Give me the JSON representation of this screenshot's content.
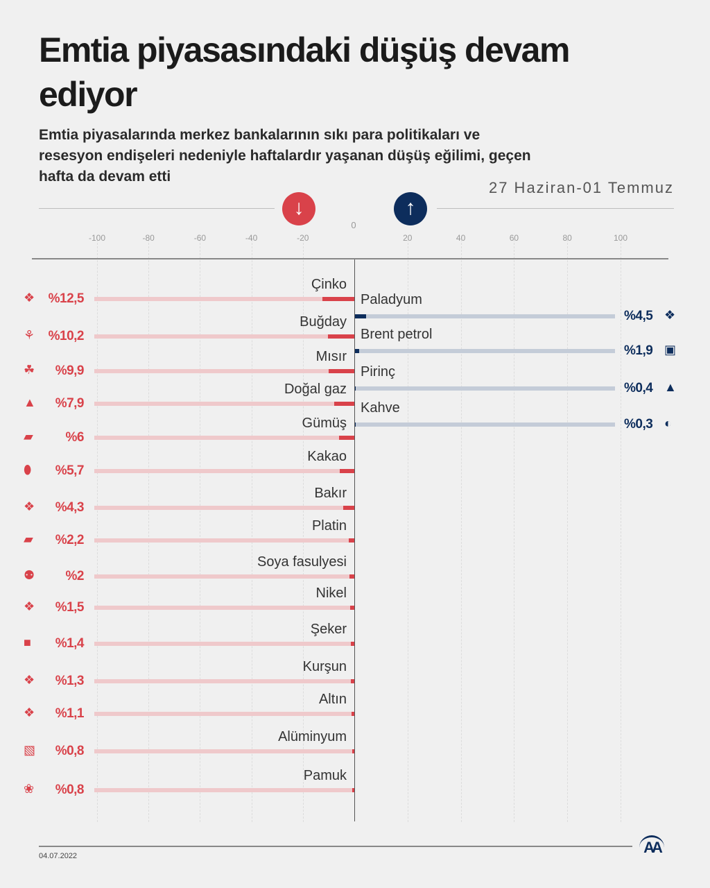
{
  "header": {
    "title": "Emtia piyasasındaki düşüş devam ediyor",
    "subtitle": "Emtia piyasalarında merkez bankalarının sıkı para politikaları ve resesyon endişeleri nedeniyle haftalardır yaşanan düşüş eğilimi, geçen hafta da devam etti",
    "period": "27 Haziran-01 Temmuz"
  },
  "legend": {
    "down_icon": "arrow-down-icon",
    "up_icon": "arrow-up-icon"
  },
  "colors": {
    "negative": "#d9424a",
    "negative_track": "#efc9cb",
    "positive": "#0d2d5c",
    "positive_track": "#c4ccd8"
  },
  "footer": {
    "date": "04.07.2022",
    "logo": "AA"
  },
  "chart_data": {
    "type": "bar",
    "orientation": "horizontal-diverging",
    "zero_label": "0",
    "xlim": [
      -100,
      100
    ],
    "ticks": [
      -100,
      -80,
      -60,
      -40,
      -20,
      20,
      40,
      60,
      80,
      100
    ],
    "tick_labels": [
      "-100",
      "-80",
      "-60",
      "-40",
      "-20",
      "20",
      "40",
      "60",
      "80",
      "100"
    ],
    "grid": true,
    "negative": [
      {
        "name": "Çinko",
        "value": -12.5,
        "label": "%12,5",
        "icon": "metal-icon"
      },
      {
        "name": "Buğday",
        "value": -10.2,
        "label": "%10,2",
        "icon": "wheat-icon"
      },
      {
        "name": "Mısır",
        "value": -9.9,
        "label": "%9,9",
        "icon": "corn-icon"
      },
      {
        "name": "Doğal gaz",
        "value": -7.9,
        "label": "%7,9",
        "icon": "flame-icon"
      },
      {
        "name": "Gümüş",
        "value": -6,
        "label": "%6",
        "icon": "ingot-icon"
      },
      {
        "name": "Kakao",
        "value": -5.7,
        "label": "%5,7",
        "icon": "cocoa-icon"
      },
      {
        "name": "Bakır",
        "value": -4.3,
        "label": "%4,3",
        "icon": "metal-icon"
      },
      {
        "name": "Platin",
        "value": -2.2,
        "label": "%2,2",
        "icon": "ingot-icon"
      },
      {
        "name": "Soya fasulyesi",
        "value": -2,
        "label": "%2",
        "icon": "soybean-icon"
      },
      {
        "name": "Nikel",
        "value": -1.5,
        "label": "%1,5",
        "icon": "metal-icon"
      },
      {
        "name": "Şeker",
        "value": -1.4,
        "label": "%1,4",
        "icon": "sugar-sack-icon"
      },
      {
        "name": "Kurşun",
        "value": -1.3,
        "label": "%1,3",
        "icon": "metal-icon"
      },
      {
        "name": "Altın",
        "value": -1.1,
        "label": "%1,1",
        "icon": "metal-icon"
      },
      {
        "name": "Alüminyum",
        "value": -0.8,
        "label": "%0,8",
        "icon": "aluminium-icon"
      },
      {
        "name": "Pamuk",
        "value": -0.8,
        "label": "%0,8",
        "icon": "cotton-icon"
      }
    ],
    "positive": [
      {
        "name": "Paladyum",
        "value": 4.5,
        "label": "%4,5",
        "icon": "metal-icon"
      },
      {
        "name": "Brent petrol",
        "value": 1.9,
        "label": "%1,9",
        "icon": "oil-barrel-icon"
      },
      {
        "name": "Pirinç",
        "value": 0.4,
        "label": "%0,4",
        "icon": "rice-sack-icon"
      },
      {
        "name": "Kahve",
        "value": 0.3,
        "label": "%0,3",
        "icon": "coffee-bean-icon"
      }
    ]
  }
}
